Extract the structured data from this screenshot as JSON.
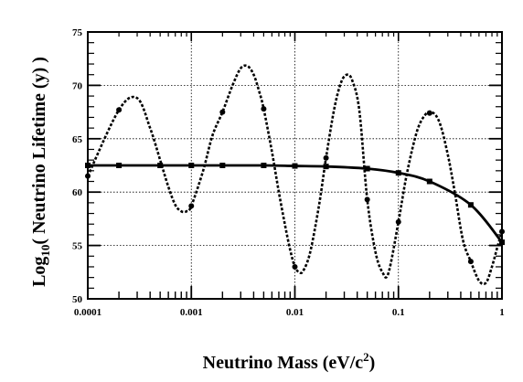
{
  "chart_data": {
    "type": "line",
    "title": "",
    "xlabel": "Neutrino Mass (eV/c²)",
    "xlabel_parts": {
      "main": "Neutrino Mass (eV/c",
      "sup": "2",
      "tail": ")"
    },
    "ylabel": "Log10( Neutrino Lifetime (y) )",
    "ylabel_parts": {
      "pre": "Log",
      "sub": "10",
      "post": "( Neutrino Lifetime (y) )"
    },
    "x_scale": "log",
    "xlim": [
      0.0001,
      1
    ],
    "ylim": [
      50,
      75
    ],
    "grid": true,
    "x_ticks": [
      0.0001,
      0.001,
      0.01,
      0.1,
      1
    ],
    "x_tick_labels": [
      "0.0001",
      "0.001",
      "0.01",
      "0.1",
      "1"
    ],
    "y_ticks": [
      50,
      55,
      60,
      65,
      70,
      75
    ],
    "y_tick_labels": [
      "50",
      "55",
      "60",
      "65",
      "70",
      "75"
    ],
    "series": [
      {
        "style": "solid",
        "marker": "square",
        "x": [
          0.0001,
          0.0002,
          0.0005,
          0.001,
          0.002,
          0.005,
          0.01,
          0.02,
          0.05,
          0.1,
          0.2,
          0.5,
          1
        ],
        "y": [
          62.5,
          62.5,
          62.5,
          62.5,
          62.5,
          62.5,
          62.45,
          62.4,
          62.2,
          61.8,
          61.0,
          58.8,
          55.3
        ]
      },
      {
        "style": "dashed",
        "marker": "circle",
        "x": [
          0.0001,
          0.0002,
          0.0003,
          0.0004,
          0.0005,
          0.0006,
          0.0007,
          0.0008,
          0.0009,
          0.001,
          0.0013,
          0.0016,
          0.002,
          0.0025,
          0.003,
          0.0035,
          0.004,
          0.0045,
          0.005,
          0.006,
          0.007,
          0.008,
          0.009,
          0.01,
          0.011,
          0.012,
          0.014,
          0.017,
          0.02,
          0.024,
          0.028,
          0.032,
          0.036,
          0.042,
          0.05,
          0.06,
          0.07,
          0.08,
          0.1,
          0.12,
          0.15,
          0.18,
          0.21,
          0.25,
          0.3,
          0.35,
          0.42,
          0.5,
          0.6,
          0.7,
          0.8,
          0.9,
          1
        ],
        "y": [
          61.5,
          67.7,
          68.8,
          66.0,
          63.0,
          60.5,
          58.8,
          58.2,
          58.2,
          58.7,
          62.0,
          65.3,
          67.5,
          70.0,
          71.6,
          71.8,
          71.0,
          69.5,
          67.8,
          63.8,
          60.0,
          57.0,
          54.6,
          53.0,
          52.5,
          52.6,
          54.3,
          58.6,
          63.2,
          67.8,
          70.3,
          71.0,
          70.4,
          67.6,
          59.3,
          54.4,
          52.5,
          52.4,
          57.2,
          61.6,
          65.6,
          67.2,
          67.5,
          66.5,
          63.5,
          60.0,
          55.5,
          53.5,
          51.7,
          51.5,
          53.0,
          54.8,
          56.3
        ]
      }
    ],
    "markers": [
      {
        "series": 0,
        "x": [
          0.0001,
          0.0002,
          0.0005,
          0.001,
          0.002,
          0.005,
          0.01,
          0.02,
          0.05,
          0.1,
          0.2,
          0.5,
          1
        ]
      },
      {
        "series": 1,
        "x": [
          0.0001,
          0.0002,
          0.001,
          0.002,
          0.005,
          0.01,
          0.02,
          0.05,
          0.1,
          0.2,
          0.5,
          1
        ]
      }
    ]
  }
}
